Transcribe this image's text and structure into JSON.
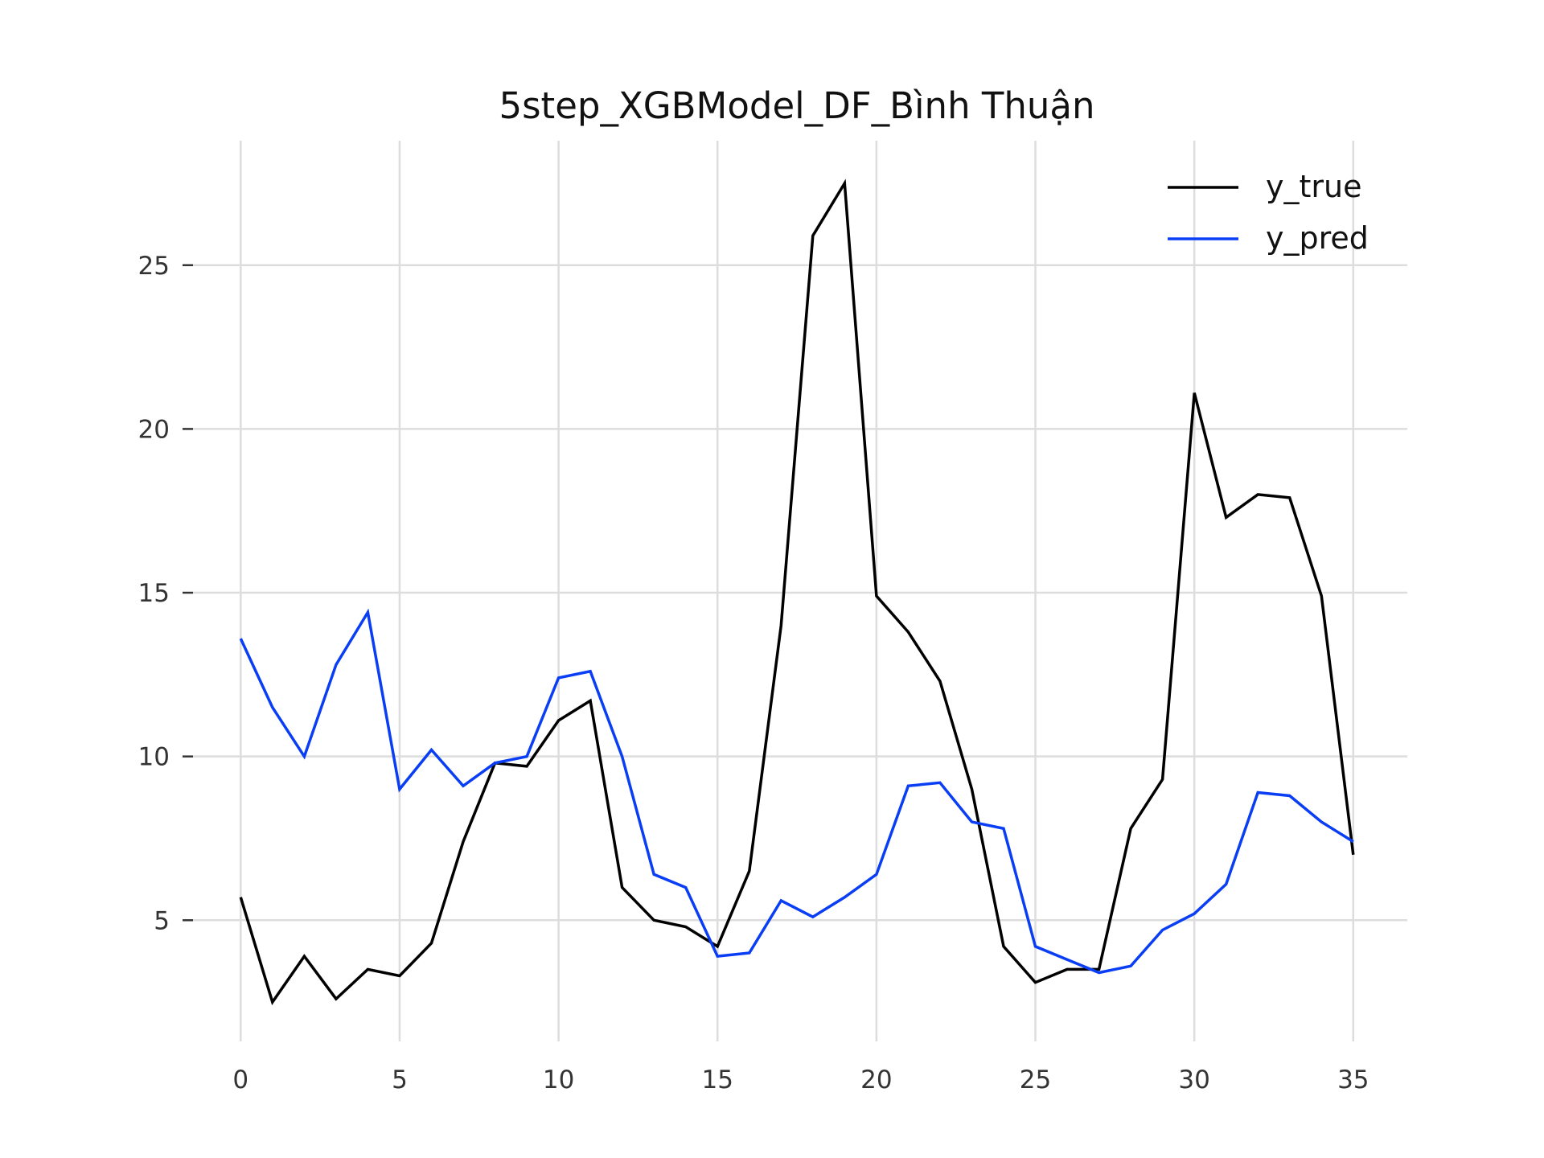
{
  "chart_data": {
    "type": "line",
    "title": "5step_XGBModel_DF_Bình Thuận",
    "xlabel": "",
    "ylabel": "",
    "x": [
      0,
      1,
      2,
      3,
      4,
      5,
      6,
      7,
      8,
      9,
      10,
      11,
      12,
      13,
      14,
      15,
      16,
      17,
      18,
      19,
      20,
      21,
      22,
      23,
      24,
      25,
      26,
      27,
      28,
      29,
      30,
      31,
      32,
      33,
      34,
      35
    ],
    "xticks": [
      0,
      5,
      10,
      15,
      20,
      25,
      30,
      35
    ],
    "yticks": [
      5,
      10,
      15,
      20,
      25
    ],
    "xlim": [
      -1.5,
      36.7
    ],
    "ylim": [
      1.3,
      28.8
    ],
    "grid": true,
    "legend_position": "top-right",
    "series": [
      {
        "name": "y_true",
        "color": "#000000",
        "values": [
          5.7,
          2.5,
          3.9,
          2.6,
          3.5,
          3.3,
          4.3,
          7.4,
          9.8,
          9.7,
          11.1,
          11.7,
          6.0,
          5.0,
          4.8,
          4.2,
          6.5,
          14.0,
          25.9,
          27.5,
          14.9,
          13.8,
          12.3,
          9.0,
          4.2,
          3.1,
          3.5,
          3.5,
          7.8,
          9.3,
          21.1,
          17.3,
          18.0,
          17.9,
          14.9,
          7.0
        ]
      },
      {
        "name": "y_pred",
        "color": "#0a3ef5",
        "values": [
          13.6,
          11.5,
          10.0,
          12.8,
          14.4,
          9.0,
          10.2,
          9.1,
          9.8,
          10.0,
          12.4,
          12.6,
          10.0,
          6.4,
          6.0,
          3.9,
          4.0,
          5.6,
          5.1,
          5.7,
          6.4,
          9.1,
          9.2,
          8.0,
          7.8,
          4.2,
          3.8,
          3.4,
          3.6,
          4.7,
          5.2,
          6.1,
          8.9,
          8.8,
          8.0,
          7.4
        ]
      }
    ]
  }
}
